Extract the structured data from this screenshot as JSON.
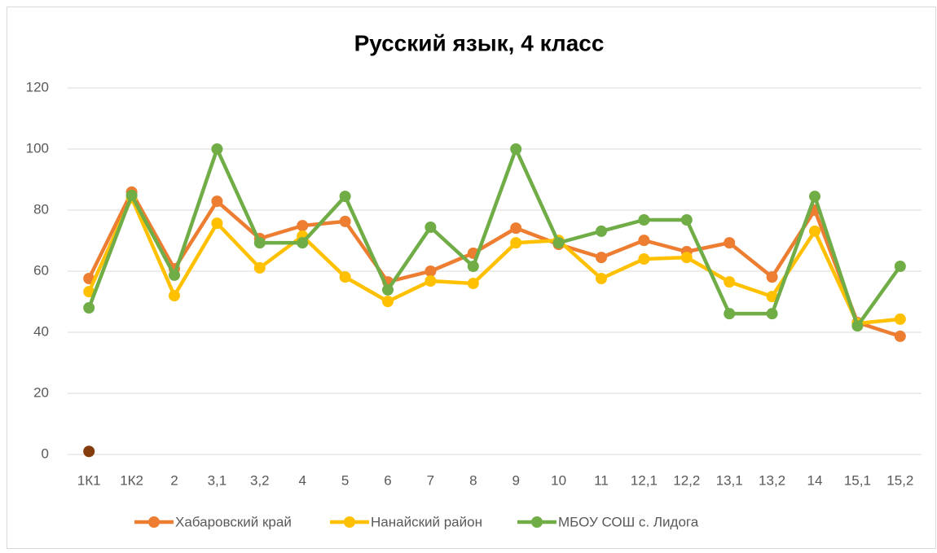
{
  "chart_data": {
    "type": "line",
    "title": "Русский язык, 4 класс",
    "categories": [
      "1К1",
      "1К2",
      "2",
      "3,1",
      "3,2",
      "4",
      "5",
      "6",
      "7",
      "8",
      "9",
      "10",
      "11",
      "12,1",
      "12,2",
      "13,1",
      "13,2",
      "14",
      "15,1",
      "15,2"
    ],
    "series": [
      {
        "name": "Хабаровский край",
        "color": "#ed7d31",
        "values": [
          57.6,
          85.9,
          60.8,
          82.9,
          70.7,
          74.9,
          76.3,
          56.5,
          60,
          65.9,
          74.1,
          68.8,
          64.5,
          70.1,
          66.4,
          69.3,
          58.1,
          80,
          43.2,
          38.7
        ]
      },
      {
        "name": "Нанайский район",
        "color": "#ffc000",
        "values": [
          53.3,
          84,
          52,
          75.7,
          61.1,
          71.5,
          58.1,
          50.1,
          56.8,
          56,
          69.3,
          70.1,
          57.6,
          64,
          64.5,
          56.5,
          51.7,
          73.1,
          42.9,
          44.3
        ]
      },
      {
        "name": "МБОУ СОШ с. Лидога",
        "color": "#70ad47",
        "values": [
          48,
          84.8,
          58.7,
          100,
          69.3,
          69.3,
          84.5,
          53.9,
          74.4,
          61.6,
          100,
          69.3,
          73.1,
          76.8,
          76.8,
          46.1,
          46.1,
          84.5,
          42.1,
          61.6
        ]
      },
      {
        "color": "#843c0c",
        "values": [
          1,
          null,
          null,
          null,
          null,
          null,
          null,
          null,
          null,
          null,
          null,
          null,
          null,
          null,
          null,
          null,
          null,
          null,
          null,
          null
        ]
      }
    ],
    "ylim": [
      0,
      120
    ],
    "yticks": [
      0,
      20,
      40,
      60,
      80,
      100,
      120
    ],
    "grid": true,
    "legend": "bottom"
  }
}
